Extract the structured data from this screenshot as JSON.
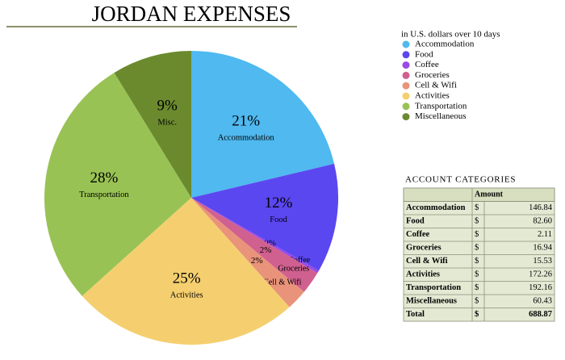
{
  "chart_data": {
    "type": "pie",
    "title": "JORDAN EXPENSES",
    "legend_title": "in U.S. dollars over 10 days",
    "categories": [
      "Accommodation",
      "Food",
      "Coffee",
      "Groceries",
      "Cell & Wifi",
      "Activities",
      "Transportation",
      "Miscellaneous"
    ],
    "slice_labels": [
      "Accommodation",
      "Food",
      "Coffee",
      "Groceries",
      "Cell & Wifi",
      "Activities",
      "Transportation",
      "Misc."
    ],
    "values": [
      21.3,
      12.0,
      0.3,
      2.5,
      2.3,
      25.0,
      27.9,
      8.8
    ],
    "value_labels": [
      "21%",
      "12%",
      "0%",
      "2%",
      "2%",
      "25%",
      "28%",
      "9%"
    ],
    "colors": [
      "#4fb9f0",
      "#5b47f0",
      "#9a4ae8",
      "#d0608f",
      "#e9937a",
      "#f5cf6f",
      "#99c254",
      "#6b8a2e"
    ],
    "legend": "right"
  },
  "table": {
    "title": "ACCOUNT CATEGORIES",
    "header": "Amount",
    "rows": [
      [
        "Accommodation",
        "$",
        "146.84"
      ],
      [
        "Food",
        "$",
        "82.60"
      ],
      [
        "Coffee",
        "$",
        "2.11"
      ],
      [
        "Groceries",
        "$",
        "16.94"
      ],
      [
        "Cell & Wifi",
        "$",
        "15.53"
      ],
      [
        "Activities",
        "$",
        "172.26"
      ],
      [
        "Transportation",
        "$",
        "192.16"
      ],
      [
        "Miscellaneous",
        "$",
        "60.43"
      ],
      [
        "Total",
        "$",
        "688.87"
      ]
    ]
  }
}
